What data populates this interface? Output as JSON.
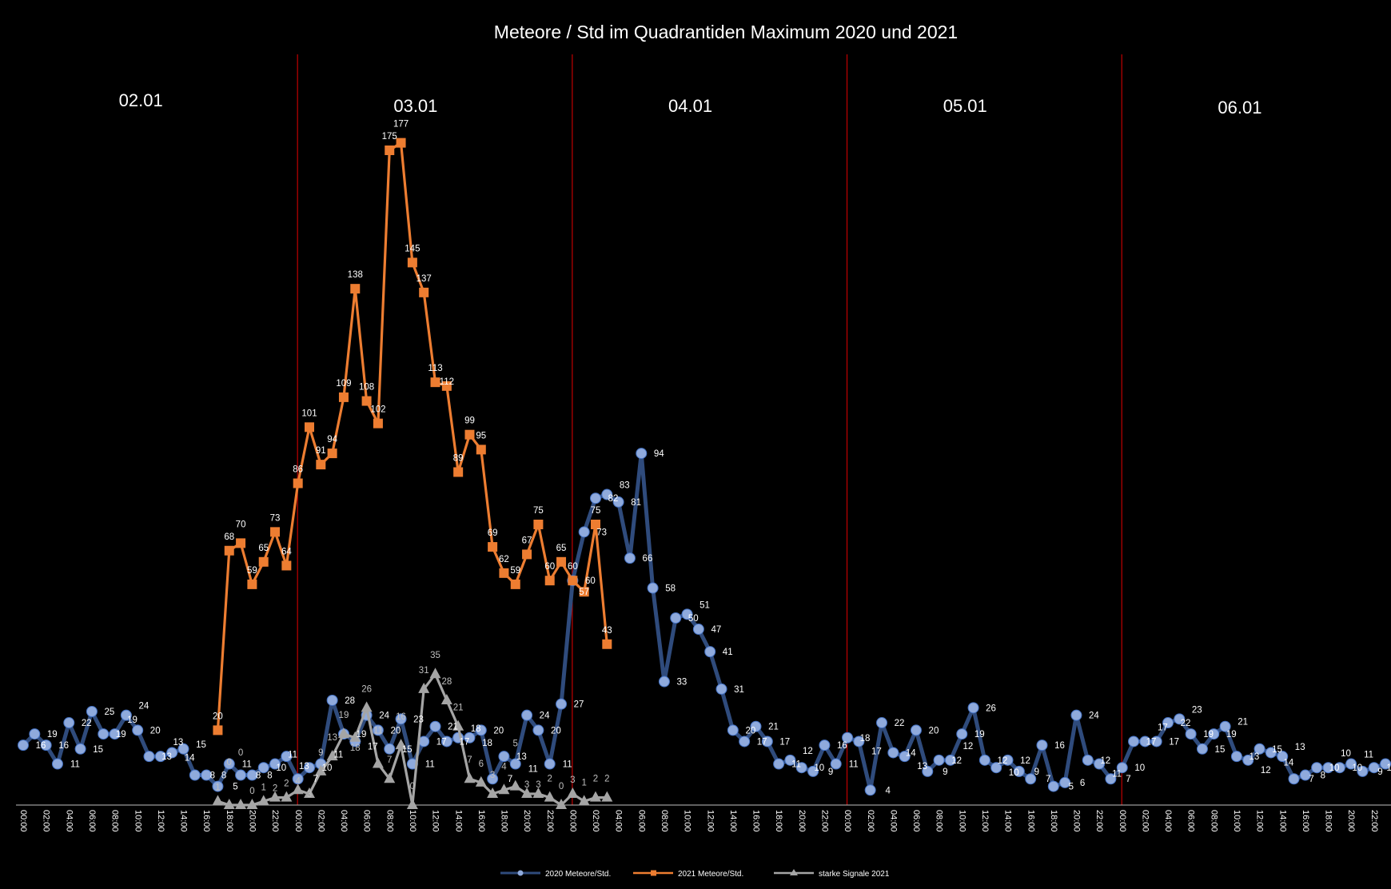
{
  "chart_data": {
    "type": "line",
    "title": "Meteore / Std im Quadrantiden Maximum 2020 und 2021",
    "day_labels": [
      "02.01",
      "03.01",
      "04.01",
      "05.01",
      "06.01"
    ],
    "x_ticks": [
      "00:00",
      "02:00",
      "04:00",
      "06:00",
      "08:00",
      "10:00",
      "12:00",
      "14:00",
      "16:00",
      "18:00",
      "20:00",
      "22:00"
    ],
    "hours_total": 120,
    "ylim": [
      0,
      180
    ],
    "grid": false,
    "legend_position": "bottom",
    "series": [
      {
        "name": "2020 Meteore/Std.",
        "color": "#2F4B7C",
        "marker_color": "#8FAADC",
        "marker": "circle",
        "start_index": 0,
        "values": [
          16,
          19,
          16,
          11,
          22,
          15,
          25,
          19,
          19,
          24,
          20,
          13,
          13,
          14,
          15,
          8,
          8,
          5,
          11,
          8,
          8,
          10,
          11,
          13,
          7,
          10,
          11,
          28,
          19,
          17,
          24,
          20,
          15,
          23,
          11,
          17,
          21,
          17,
          18,
          18,
          20,
          7,
          13,
          11,
          24,
          20,
          11,
          27,
          60,
          73,
          82,
          83,
          81,
          66,
          94,
          58,
          33,
          50,
          51,
          47,
          41,
          31,
          20,
          17,
          21,
          17,
          11,
          12,
          10,
          9,
          16,
          11,
          18,
          17,
          4,
          22,
          14,
          13,
          20,
          9,
          12,
          12,
          19,
          26,
          12,
          10,
          12,
          9,
          7,
          16,
          5,
          6,
          24,
          12,
          11,
          7,
          10,
          17,
          17,
          17,
          22,
          23,
          19,
          15,
          19,
          21,
          13,
          12,
          15,
          14,
          13,
          7,
          8,
          10,
          10,
          10,
          11,
          9,
          10,
          11
        ]
      },
      {
        "name": "2021 Meteore/Std.",
        "color": "#ED7D31",
        "marker": "square",
        "start_index": 17,
        "values": [
          20,
          68,
          70,
          59,
          65,
          73,
          64,
          86,
          101,
          91,
          94,
          109,
          138,
          108,
          102,
          175,
          177,
          145,
          137,
          113,
          112,
          89,
          99,
          95,
          69,
          62,
          59,
          67,
          75,
          60,
          65,
          60,
          57,
          75,
          43
        ]
      },
      {
        "name": "starke Signale 2021",
        "color": "#A5A5A5",
        "marker": "triangle",
        "start_index": 17,
        "values": [
          1,
          0,
          0,
          0,
          1,
          2,
          2,
          4,
          3,
          9,
          13,
          19,
          18,
          26,
          11,
          7,
          16,
          0,
          31,
          35,
          28,
          21,
          7,
          6,
          3,
          4,
          5,
          3,
          3,
          2,
          0,
          3,
          1,
          2,
          2
        ]
      }
    ],
    "separator_color": "#C00000"
  }
}
